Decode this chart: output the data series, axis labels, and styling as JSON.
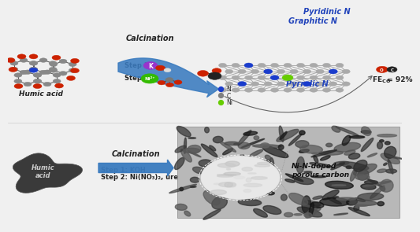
{
  "bg_color": "#f0f0f0",
  "top_row": {
    "humic_acid_label": "Humic acid",
    "calcination_label": "Calcination",
    "step1_label": "Step 1",
    "step2_label": "Step 2",
    "pyridinic_n": "Pyridinic N",
    "graphitic_n": "Graphitic N",
    "pyrrolic_n": "Pyrrolic N",
    "fe_co": "FE",
    "fe_co_sub": "CO",
    "fe_co_val": " = 92%",
    "legend_N": "N",
    "legend_C": "C",
    "legend_Ni": "Ni",
    "legend_N_color": "#1a3ccc",
    "legend_C_color": "#808080",
    "legend_Ni_color": "#66cc00"
  },
  "bottom_row": {
    "humic_acid_label": "Humic\nacid",
    "calcination_label": "Calcination",
    "step1_label": "Step 1: KOH",
    "step2_label": "Step 2: Ni(NO₃)₂, urea",
    "product_label": "Ni-N-doped\nporous carbon"
  },
  "arrow_color": "#3a7bbf",
  "text_color_blue": "#2244bb",
  "text_color_dark": "#222222"
}
